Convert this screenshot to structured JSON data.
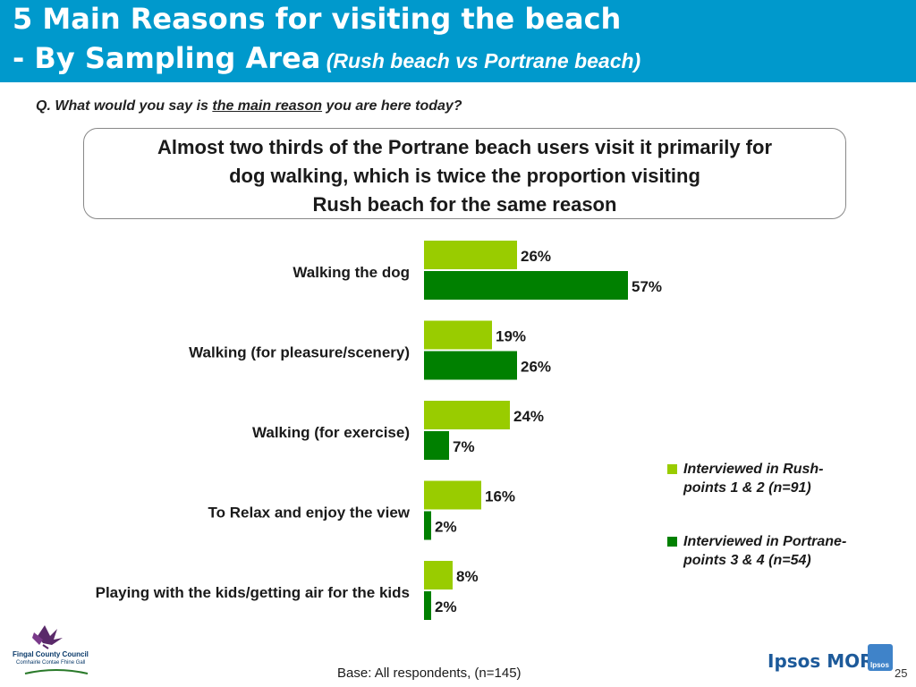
{
  "header": {
    "title_line1": "5 Main Reasons for visiting the beach",
    "title_line2_main": "- By Sampling Area",
    "title_line2_sub_open": " (",
    "title_line2_sub": "Rush beach vs Portrane beach)"
  },
  "question": {
    "prefix": "Q. What would you say is ",
    "underlined": "the main reason",
    "suffix": " you are here today?"
  },
  "callout": {
    "line1": "Almost two thirds of the Portrane beach users visit it primarily for",
    "line2": "dog walking, which is twice the proportion visiting",
    "line3": "Rush beach for the same reason"
  },
  "chart_data": {
    "type": "bar",
    "orientation": "horizontal",
    "categories": [
      "Walking the dog",
      "Walking (for pleasure/scenery)",
      "Walking (for exercise)",
      "To Relax and enjoy the view",
      "Playing with the kids/getting air for the kids"
    ],
    "series": [
      {
        "name": "Interviewed in Rush- points 1 & 2 (n=91)",
        "color": "#99cc00",
        "values": [
          26,
          19,
          24,
          16,
          8
        ]
      },
      {
        "name": "Interviewed in Portrane- points 3 & 4 (n=54)",
        "color": "#008000",
        "values": [
          57,
          26,
          7,
          2,
          2
        ]
      }
    ],
    "value_suffix": "%",
    "xlim": [
      0,
      100
    ],
    "legend_position": "right"
  },
  "legend": {
    "item1": "Interviewed in Rush- points 1 & 2 (n=91)",
    "item2": "Interviewed in Portrane- points 3 & 4 (n=54)"
  },
  "footer": {
    "base": "Base: All respondents, (n=145)",
    "page": "25"
  },
  "logos": {
    "fingal_name": "Fingal County Council",
    "fingal_sub": "Comhairle Contae Fhine Gall",
    "ipsos": "Ipsos MORI",
    "ipsos_badge": "Ipsos"
  }
}
